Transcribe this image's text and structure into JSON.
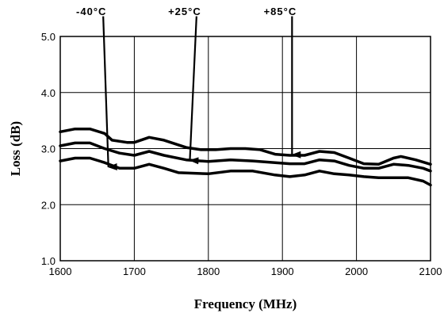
{
  "chart_data": {
    "type": "line",
    "xlabel": "Frequency (MHz)",
    "ylabel": "Loss (dB)",
    "xlim": [
      1600,
      2100
    ],
    "ylim": [
      1.0,
      5.0
    ],
    "x_ticks": [
      1600,
      1700,
      1800,
      1900,
      2000,
      2100
    ],
    "x_tick_labels": [
      "1600",
      "1700",
      "1800",
      "1900",
      "2000",
      "2100"
    ],
    "y_ticks": [
      1.0,
      2.0,
      3.0,
      4.0,
      5.0
    ],
    "y_tick_labels": [
      "1.0",
      "2.0",
      "3.0",
      "4.0",
      "5.0"
    ],
    "grid": true,
    "line_color": "#000000",
    "series": [
      {
        "name": "+85°C",
        "x": [
          1600,
          1620,
          1640,
          1660,
          1670,
          1690,
          1700,
          1720,
          1740,
          1770,
          1790,
          1810,
          1830,
          1850,
          1870,
          1890,
          1910,
          1930,
          1950,
          1970,
          1990,
          2010,
          2030,
          2050,
          2060,
          2080,
          2100
        ],
        "values": [
          3.3,
          3.35,
          3.35,
          3.27,
          3.15,
          3.11,
          3.11,
          3.2,
          3.15,
          3.02,
          2.98,
          2.98,
          3.0,
          3.0,
          2.98,
          2.9,
          2.88,
          2.88,
          2.95,
          2.93,
          2.83,
          2.73,
          2.72,
          2.83,
          2.86,
          2.8,
          2.72
        ]
      },
      {
        "name": "+25°C",
        "x": [
          1600,
          1620,
          1640,
          1660,
          1680,
          1700,
          1720,
          1740,
          1770,
          1800,
          1830,
          1860,
          1890,
          1910,
          1930,
          1950,
          1970,
          1990,
          2010,
          2030,
          2050,
          2070,
          2090,
          2100
        ],
        "values": [
          3.05,
          3.1,
          3.1,
          3.0,
          2.92,
          2.88,
          2.95,
          2.88,
          2.8,
          2.77,
          2.8,
          2.78,
          2.75,
          2.73,
          2.73,
          2.8,
          2.78,
          2.7,
          2.65,
          2.65,
          2.72,
          2.7,
          2.65,
          2.6
        ]
      },
      {
        "name": "-40°C",
        "x": [
          1600,
          1620,
          1640,
          1660,
          1680,
          1700,
          1720,
          1740,
          1760,
          1800,
          1830,
          1860,
          1890,
          1910,
          1930,
          1950,
          1970,
          1990,
          2010,
          2030,
          2050,
          2070,
          2090,
          2100
        ],
        "values": [
          2.78,
          2.83,
          2.83,
          2.75,
          2.65,
          2.65,
          2.72,
          2.65,
          2.57,
          2.55,
          2.6,
          2.6,
          2.53,
          2.5,
          2.53,
          2.6,
          2.55,
          2.53,
          2.5,
          2.48,
          2.48,
          2.48,
          2.42,
          2.35
        ]
      }
    ],
    "annotations": [
      {
        "label": "-40°C",
        "text_x": 1642,
        "arrow_from": [
          1658,
          5.36
        ],
        "arrow_to": [
          1665,
          2.67
        ]
      },
      {
        "label": "+25°C",
        "text_x": 1768,
        "arrow_from": [
          1784,
          5.36
        ],
        "arrow_to": [
          1775,
          2.79
        ]
      },
      {
        "label": "+85°C",
        "text_x": 1897,
        "arrow_from": [
          1913,
          5.36
        ],
        "arrow_to": [
          1913,
          2.89
        ]
      }
    ]
  }
}
